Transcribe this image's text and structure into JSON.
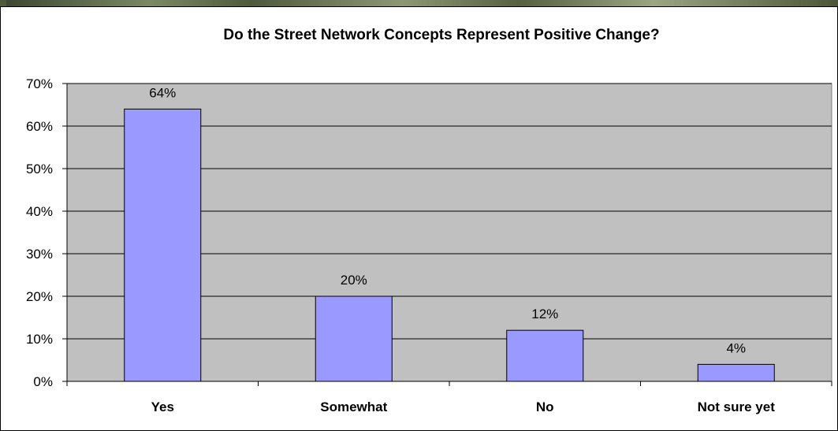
{
  "chart_data": {
    "type": "bar",
    "title": "Do the Street Network Concepts Represent Positive Change?",
    "categories": [
      "Yes",
      "Somewhat",
      "No",
      "Not sure yet"
    ],
    "values": [
      64,
      20,
      12,
      4
    ],
    "data_labels": [
      "64%",
      "20%",
      "12%",
      "4%"
    ],
    "yticks": [
      "0%",
      "10%",
      "20%",
      "30%",
      "40%",
      "50%",
      "60%",
      "70%"
    ],
    "ylim": [
      0,
      70
    ],
    "grid": true,
    "xlabel": "",
    "ylabel": "",
    "colors": {
      "bar_fill": "#9999ff",
      "bar_stroke": "#000000",
      "plot_background": "#c0c0c0",
      "gridline": "#000000"
    }
  }
}
